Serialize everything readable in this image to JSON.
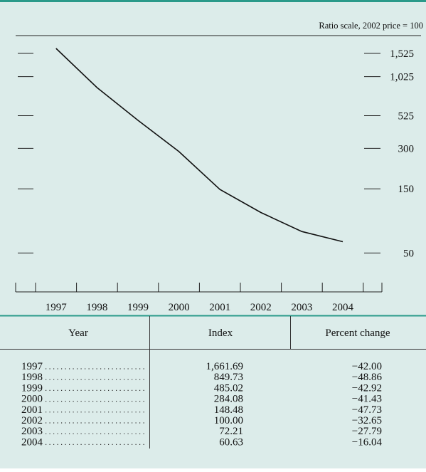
{
  "chart_data": {
    "type": "line",
    "subtitle": "Ratio scale, 2002 price = 100",
    "categories": [
      "1997",
      "1998",
      "1999",
      "2000",
      "2001",
      "2002",
      "2003",
      "2004"
    ],
    "values": [
      1661.69,
      849.73,
      485.02,
      284.08,
      148.48,
      100.0,
      72.21,
      60.63
    ],
    "color": "#111111",
    "log_scale": true,
    "ylim": [
      29,
      2070
    ],
    "yticks": [
      50,
      150,
      300,
      525,
      {
        "value": 1025,
        "label": "1,025"
      },
      {
        "value": 1525,
        "label": "1,525"
      }
    ]
  },
  "table": {
    "columns": [
      "Year",
      "Index",
      "Percent change"
    ],
    "rows": [
      [
        "1997",
        "1,661.69",
        "−42.00"
      ],
      [
        "1998",
        "849.73",
        "−48.86"
      ],
      [
        "1999",
        "485.02",
        "−42.92"
      ],
      [
        "2000",
        "284.08",
        "−41.43"
      ],
      [
        "2001",
        "148.48",
        "−47.73"
      ],
      [
        "2002",
        "100.00",
        "−32.65"
      ],
      [
        "2003",
        "72.21",
        "−27.79"
      ],
      [
        "2004",
        "60.63",
        "−16.04"
      ]
    ]
  }
}
